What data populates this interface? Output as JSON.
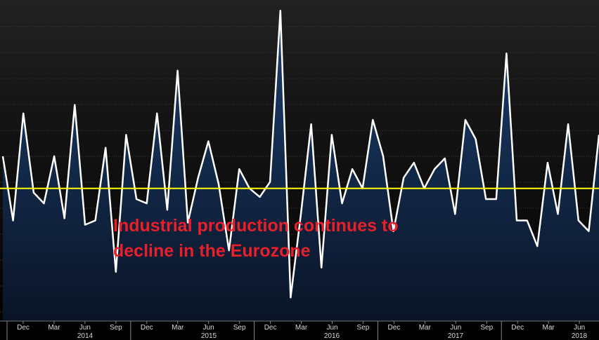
{
  "chart_data": {
    "type": "line",
    "title": "",
    "xlabel": "",
    "ylabel": "",
    "grid": true,
    "x_tick_labels": [
      "Dec",
      "Mar",
      "Jun",
      "Sep",
      "Dec",
      "Mar",
      "Jun",
      "Sep",
      "Dec",
      "Mar",
      "Jun",
      "Sep",
      "Dec",
      "Mar",
      "Jun",
      "Sep",
      "Dec",
      "Mar",
      "Jun"
    ],
    "year_labels": [
      "2014",
      "2015",
      "2016",
      "2017",
      "2018"
    ],
    "reference_level": 0,
    "ylim": [
      -6.2,
      8.8
    ],
    "series": [
      {
        "values": [
          1.5,
          -1.5,
          3.5,
          -0.2,
          -0.7,
          1.5,
          -1.4,
          3.9,
          -1.7,
          -1.5,
          1.9,
          -3.9,
          2.5,
          -0.5,
          -0.7,
          3.5,
          -1.0,
          5.5,
          -1.6,
          0.5,
          2.2,
          0.2,
          -2.9,
          0.9,
          0.0,
          -0.4,
          0.3,
          8.3,
          -5.1,
          -1.2,
          3.0,
          -3.7,
          2.5,
          -0.7,
          0.9,
          0.0,
          3.2,
          1.5,
          -2.0,
          0.5,
          1.2,
          0.0,
          0.9,
          1.4,
          -1.2,
          3.2,
          2.3,
          -0.5,
          -0.5,
          6.3,
          -1.5,
          -1.5,
          -2.7,
          1.2,
          -1.2,
          3.0,
          -1.5,
          -2.0,
          2.5
        ]
      }
    ],
    "annotation": [
      "Industrial production continues to",
      "decline in the Eurozone"
    ]
  },
  "colors": {
    "line": "#ffffff",
    "reference_line": "#ffff00",
    "annotation": "#e8202a",
    "fill_top": "#1c3f6e",
    "fill_bottom": "#0a1426"
  }
}
